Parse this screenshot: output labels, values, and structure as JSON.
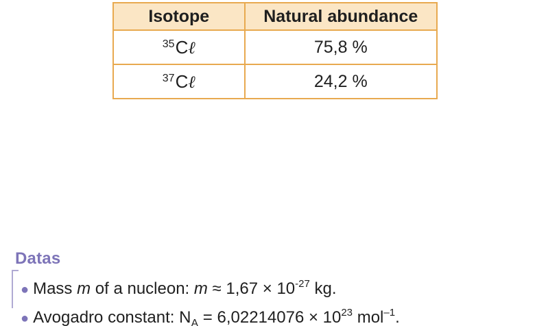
{
  "table": {
    "headers": [
      "Isotope",
      "Natural abundance"
    ],
    "rows": [
      {
        "mass_number": "35",
        "symbol_c": "C",
        "symbol_l": "ℓ",
        "abundance": "75,8 %"
      },
      {
        "mass_number": "37",
        "symbol_c": "C",
        "symbol_l": "ℓ",
        "abundance": "24,2 %"
      }
    ]
  },
  "datas": {
    "title": "Datas",
    "items": [
      {
        "text_before": "Mass ",
        "variable": "m",
        "text_mid": " of a nucleon: ",
        "variable2": "m",
        "value": " ≈ 1,67 × 10",
        "exponent": "-27",
        "unit": " kg."
      },
      {
        "text_before": "Avogadro constant: N",
        "subscript": "A",
        "value": " = 6,02214076 × 10",
        "exponent": "23",
        "unit": " mol",
        "unit_exponent": "–1",
        "end": "."
      }
    ]
  }
}
